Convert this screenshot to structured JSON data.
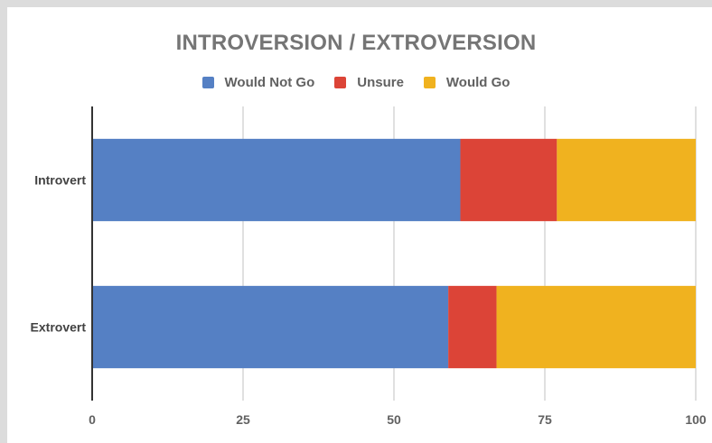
{
  "chart_data": {
    "type": "bar",
    "orientation": "horizontal",
    "stacked": true,
    "title": "INTROVERSION / EXTROVERSION",
    "categories": [
      "Introvert",
      "Extrovert"
    ],
    "series": [
      {
        "name": "Would Not Go",
        "color": "#5580c4",
        "values": [
          61,
          59
        ]
      },
      {
        "name": "Unsure",
        "color": "#dc4437",
        "values": [
          16,
          8
        ]
      },
      {
        "name": "Would Go",
        "color": "#f0b21f",
        "values": [
          23,
          33
        ]
      }
    ],
    "xlim": [
      0,
      100
    ],
    "xticks": [
      "0",
      "25",
      "50",
      "75",
      "100"
    ],
    "grid": true,
    "legend_position": "top"
  }
}
